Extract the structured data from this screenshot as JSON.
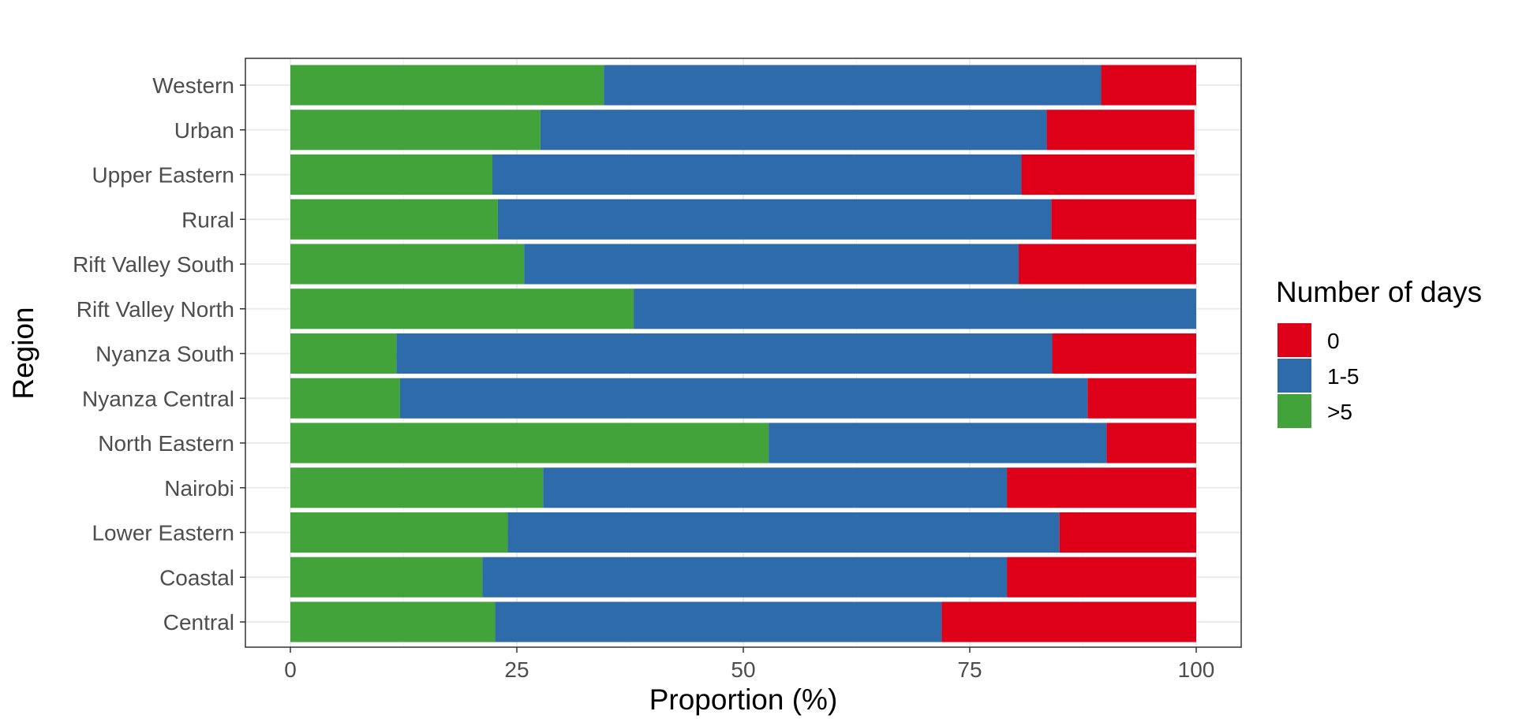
{
  "chart_data": {
    "type": "bar",
    "orientation": "horizontal",
    "stacked": true,
    "xlabel": "Proportion (%)",
    "ylabel": "Region",
    "xlim": [
      0,
      100
    ],
    "xticks": [
      0,
      25,
      50,
      75,
      100
    ],
    "grid": true,
    "legend_position": "right",
    "legend_title": "Number of days",
    "categories": [
      "Central",
      "Coastal",
      "Lower Eastern",
      "Nairobi",
      "North Eastern",
      "Nyanza Central",
      "Nyanza South",
      "Rift Valley North",
      "Rift Valley South",
      "Rural",
      "Upper Eastern",
      "Urban",
      "Western"
    ],
    "series": [
      {
        "name": ">5",
        "color": "#41A33A",
        "values": [
          22.6,
          21.2,
          24.0,
          27.9,
          52.8,
          12.1,
          11.7,
          37.9,
          25.8,
          22.9,
          22.3,
          27.6,
          34.6
        ]
      },
      {
        "name": "1-5",
        "color": "#2D6BAA",
        "values": [
          49.3,
          57.9,
          60.9,
          51.2,
          37.3,
          75.9,
          72.4,
          62.1,
          54.6,
          61.1,
          58.4,
          55.9,
          54.9
        ]
      },
      {
        "name": "0",
        "color": "#DE0018",
        "values": [
          28.1,
          20.9,
          15.1,
          20.9,
          9.9,
          12.0,
          15.9,
          0.0,
          19.6,
          16.0,
          19.1,
          16.3,
          10.5
        ]
      }
    ],
    "legend_order": [
      "0",
      "1-5",
      ">5"
    ]
  }
}
